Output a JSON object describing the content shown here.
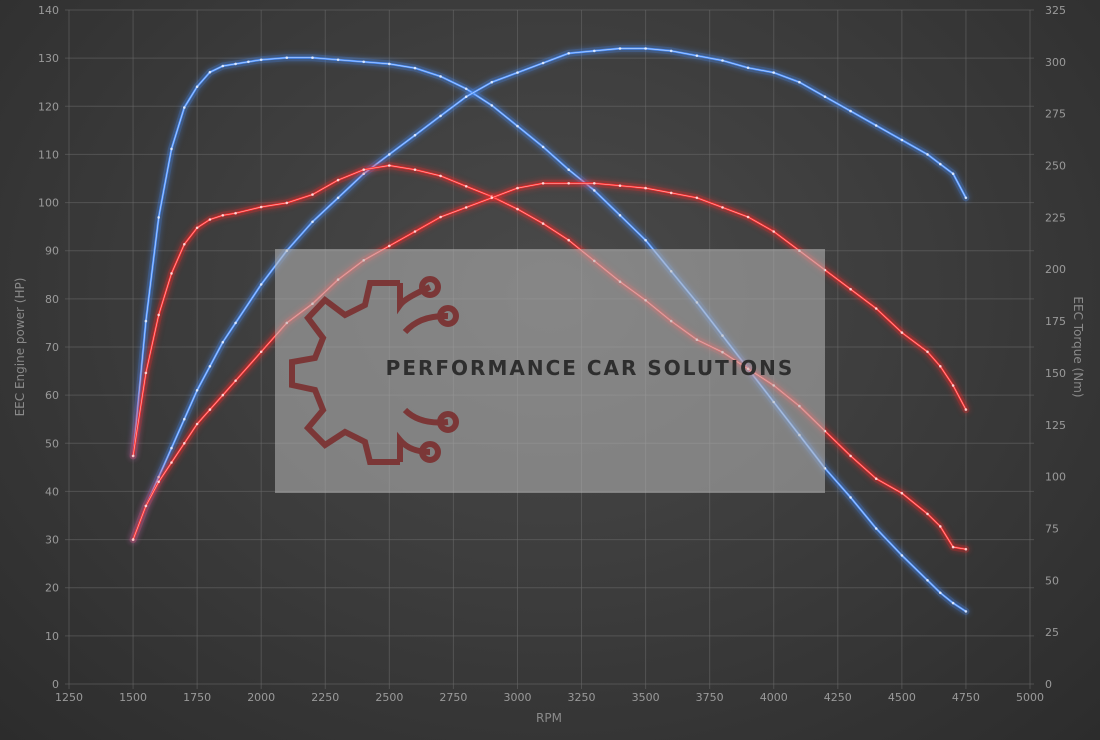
{
  "chart_data": {
    "type": "line",
    "xlabel": "RPM",
    "ylabel_left": "EEC Engine power (HP)",
    "ylabel_right": "EEC Torque (Nm)",
    "xlim": [
      1250,
      5000
    ],
    "ylim_left": [
      0,
      140
    ],
    "ylim_right": [
      0,
      325
    ],
    "x_ticks": [
      1250,
      1500,
      1750,
      2000,
      2250,
      2500,
      2750,
      3000,
      3250,
      3500,
      3750,
      4000,
      4250,
      4500,
      4750,
      5000
    ],
    "y_ticks_left": [
      0,
      10,
      20,
      30,
      40,
      50,
      60,
      70,
      80,
      90,
      100,
      110,
      120,
      130,
      140
    ],
    "y_ticks_right": [
      0,
      25,
      50,
      75,
      100,
      125,
      150,
      175,
      200,
      225,
      250,
      275,
      300,
      325
    ],
    "grid": true,
    "colors": {
      "tuned": "#4a90ff",
      "stock": "#ff2a2a"
    },
    "series": [
      {
        "axis": "right",
        "color": "#4a90ff",
        "x": [
          1500,
          1550,
          1600,
          1650,
          1700,
          1750,
          1800,
          1850,
          1900,
          1950,
          2000,
          2100,
          2200,
          2300,
          2400,
          2500,
          2600,
          2700,
          2800,
          2900,
          3000,
          3100,
          3200,
          3300,
          3400,
          3500,
          3600,
          3700,
          3800,
          3900,
          4000,
          4100,
          4200,
          4300,
          4400,
          4500,
          4600,
          4650,
          4700,
          4750
        ],
        "values": [
          110,
          175,
          225,
          258,
          278,
          288,
          295,
          298,
          299,
          300,
          301,
          302,
          302,
          301,
          300,
          299,
          297,
          293,
          287,
          279,
          269,
          259,
          248,
          238,
          226,
          214,
          199,
          184,
          168,
          152,
          136,
          120,
          104,
          90,
          75,
          62,
          50,
          44,
          39,
          35
        ]
      },
      {
        "axis": "left",
        "color": "#4a90ff",
        "x": [
          1500,
          1550,
          1600,
          1650,
          1700,
          1750,
          1800,
          1850,
          1900,
          2000,
          2100,
          2200,
          2300,
          2400,
          2500,
          2600,
          2700,
          2800,
          2900,
          3000,
          3100,
          3200,
          3300,
          3400,
          3500,
          3600,
          3700,
          3800,
          3900,
          4000,
          4100,
          4200,
          4300,
          4400,
          4500,
          4600,
          4650,
          4700,
          4750
        ],
        "values": [
          30,
          37,
          43,
          49,
          55,
          61,
          66,
          71,
          75,
          83,
          90,
          96,
          101,
          106,
          110,
          114,
          118,
          122,
          125,
          127,
          129,
          131,
          131.5,
          132,
          132,
          131.5,
          130.5,
          129.5,
          128,
          127,
          125,
          122,
          119,
          116,
          113,
          110,
          108,
          106,
          101
        ]
      },
      {
        "axis": "right",
        "color": "#ff2a2a",
        "x": [
          1500,
          1550,
          1600,
          1650,
          1700,
          1750,
          1800,
          1850,
          1900,
          2000,
          2100,
          2200,
          2300,
          2400,
          2500,
          2600,
          2700,
          2800,
          2900,
          3000,
          3100,
          3200,
          3300,
          3400,
          3500,
          3600,
          3700,
          3800,
          3900,
          4000,
          4100,
          4200,
          4300,
          4400,
          4500,
          4600,
          4650,
          4700,
          4750
        ],
        "values": [
          110,
          150,
          178,
          198,
          212,
          220,
          224,
          226,
          227,
          230,
          232,
          236,
          243,
          248,
          250,
          248,
          245,
          240,
          235,
          229,
          222,
          214,
          204,
          194,
          185,
          175,
          166,
          160,
          152,
          144,
          134,
          122,
          110,
          99,
          92,
          82,
          76,
          66,
          65
        ]
      },
      {
        "axis": "left",
        "color": "#ff2a2a",
        "x": [
          1500,
          1550,
          1600,
          1650,
          1700,
          1750,
          1800,
          1850,
          1900,
          2000,
          2100,
          2200,
          2300,
          2400,
          2500,
          2600,
          2700,
          2800,
          2900,
          3000,
          3100,
          3200,
          3300,
          3400,
          3500,
          3600,
          3700,
          3800,
          3900,
          4000,
          4100,
          4200,
          4300,
          4400,
          4500,
          4600,
          4650,
          4700,
          4750
        ],
        "values": [
          30,
          37,
          42,
          46,
          50,
          54,
          57,
          60,
          63,
          69,
          75,
          79,
          84,
          88,
          91,
          94,
          97,
          99,
          101,
          103,
          104,
          104,
          104,
          103.5,
          103,
          102,
          101,
          99,
          97,
          94,
          90,
          86,
          82,
          78,
          73,
          69,
          66,
          62,
          57
        ]
      }
    ]
  },
  "watermark": {
    "text": "PERFORMANCE CAR SOLUTIONS",
    "logo": "gear-circuit-logo"
  }
}
